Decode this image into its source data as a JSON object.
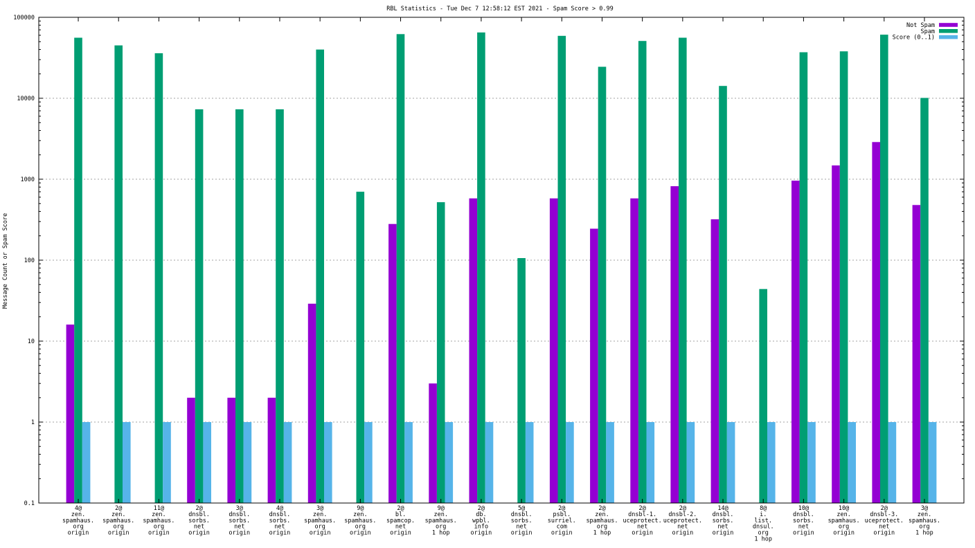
{
  "chart_data": {
    "type": "bar",
    "title": "RBL Statistics - Tue Dec  7 12:58:12 EST 2021 - Spam Score > 0.99",
    "ylabel": "Message Count or Spam Score",
    "xlabel": "",
    "yscale": "log",
    "ylim": [
      0.1,
      100000
    ],
    "grid": true,
    "legend_position": "top-right",
    "yticks": [
      {
        "value": 0.1,
        "label": "0.1"
      },
      {
        "value": 1,
        "label": "1"
      },
      {
        "value": 10,
        "label": "10"
      },
      {
        "value": 100,
        "label": "100"
      },
      {
        "value": 1000,
        "label": "1000"
      },
      {
        "value": 10000,
        "label": "10000"
      },
      {
        "value": 100000,
        "label": "100000"
      }
    ],
    "categories": [
      [
        "4@",
        "zen.",
        "spamhaus.",
        "org",
        "origin"
      ],
      [
        "2@",
        "zen.",
        "spamhaus.",
        "org",
        "origin"
      ],
      [
        "11@",
        "zen.",
        "spamhaus.",
        "org",
        "origin"
      ],
      [
        "2@",
        "dnsbl.",
        "sorbs.",
        "net",
        "origin"
      ],
      [
        "3@",
        "dnsbl.",
        "sorbs.",
        "net",
        "origin"
      ],
      [
        "4@",
        "dnsbl.",
        "sorbs.",
        "net",
        "origin"
      ],
      [
        "3@",
        "zen.",
        "spamhaus.",
        "org",
        "origin"
      ],
      [
        "9@",
        "zen.",
        "spamhaus.",
        "org",
        "origin"
      ],
      [
        "2@",
        "bl.",
        "spamcop.",
        "net",
        "origin"
      ],
      [
        "9@",
        "zen.",
        "spamhaus.",
        "org",
        "1 hop"
      ],
      [
        "2@",
        "db.",
        "wpbl.",
        "info",
        "origin"
      ],
      [
        "5@",
        "dnsbl.",
        "sorbs.",
        "net",
        "origin"
      ],
      [
        "2@",
        "psbl.",
        "surriel.",
        "com",
        "origin"
      ],
      [
        "2@",
        "zen.",
        "spamhaus.",
        "org",
        "1 hop"
      ],
      [
        "2@",
        "dnsbl-1.",
        "uceprotect.",
        "net",
        "origin"
      ],
      [
        "2@",
        "dnsbl-2.",
        "uceprotect.",
        "net",
        "origin"
      ],
      [
        "14@",
        "dnsbl.",
        "sorbs.",
        "net",
        "origin"
      ],
      [
        "8@",
        "i.",
        "list.",
        "dnsul.",
        "org",
        "1 hop"
      ],
      [
        "10@",
        "dnsbl.",
        "sorbs.",
        "net",
        "origin"
      ],
      [
        "10@",
        "zen.",
        "spamhaus.",
        "org",
        "origin"
      ],
      [
        "2@",
        "dnsbl-3.",
        "uceprotect.",
        "net",
        "origin"
      ],
      [
        "3@",
        "zen.",
        "spamhaus.",
        "org",
        "1 hop"
      ]
    ],
    "series": [
      {
        "name": "Not Spam",
        "color": "#9400d3",
        "values": [
          16,
          null,
          null,
          2,
          2,
          2,
          29,
          null,
          280,
          3,
          580,
          null,
          580,
          245,
          580,
          820,
          320,
          null,
          960,
          1480,
          2880,
          480
        ]
      },
      {
        "name": "Spam",
        "color": "#009e73",
        "values": [
          56000,
          45000,
          36000,
          7300,
          7300,
          7300,
          40000,
          700,
          62000,
          520,
          65000,
          106,
          59000,
          24500,
          51000,
          56000,
          14200,
          44,
          37000,
          38000,
          61000,
          10100
        ]
      },
      {
        "name": "Score (0..1)",
        "color": "#56b4e9",
        "values": [
          1,
          1,
          1,
          1,
          1,
          1,
          1,
          1,
          1,
          1,
          1,
          1,
          1,
          1,
          1,
          1,
          1,
          1,
          1,
          1,
          1,
          1
        ]
      }
    ]
  }
}
